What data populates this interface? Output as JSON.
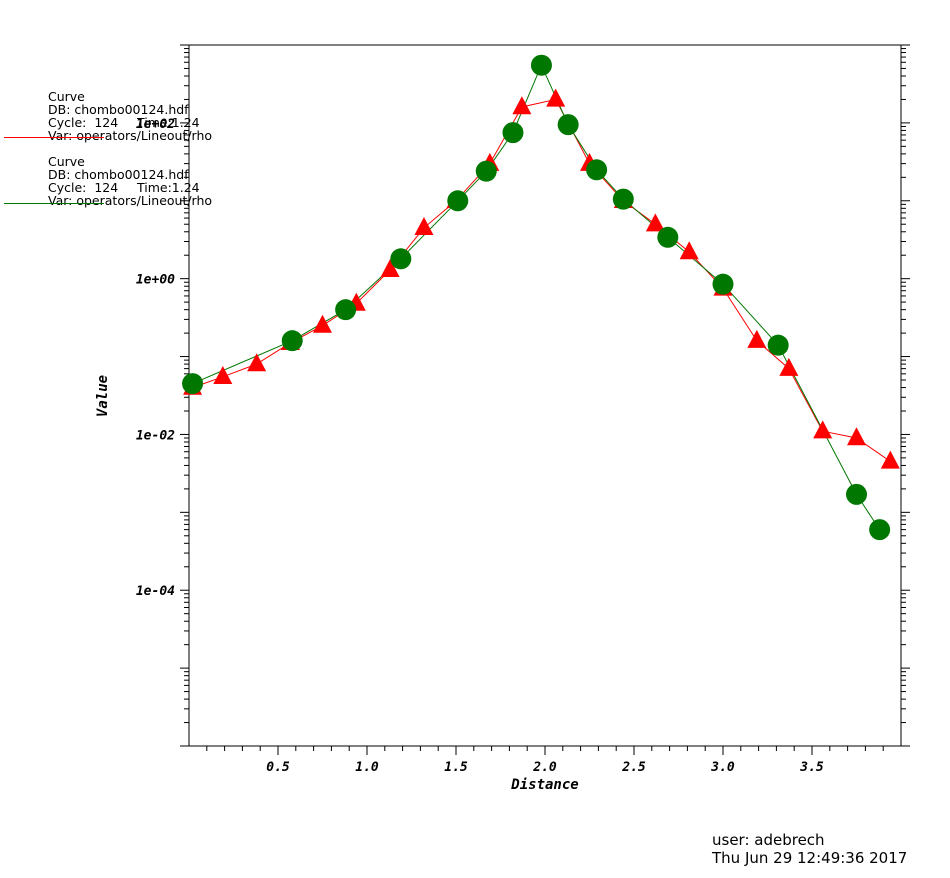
{
  "chart_data": {
    "type": "line",
    "xlabel": "Distance",
    "ylabel": "Value",
    "xlim": [
      0.0,
      4.0
    ],
    "ylim": [
      1e-06,
      1000
    ],
    "yscale": "log",
    "grid": false,
    "legend_placement": "top-left",
    "x_ticks": [
      0.5,
      1.0,
      1.5,
      2.0,
      2.5,
      3.0,
      3.5
    ],
    "x_tick_labels": [
      "0.5",
      "1.0",
      "1.5",
      "2.0",
      "2.5",
      "3.0",
      "3.5"
    ],
    "y_ticks": [
      0.0001,
      0.01,
      1,
      100
    ],
    "y_tick_labels": [
      "1e-04",
      "1e-02",
      "1e+00",
      "1e+02"
    ],
    "series": [
      {
        "name": "operators/Lineout/rho",
        "color": "#ff0000",
        "marker": "triangle",
        "x": [
          0.02,
          0.19,
          0.38,
          0.57,
          0.75,
          0.94,
          1.13,
          1.32,
          1.5,
          1.69,
          1.87,
          2.06,
          2.25,
          2.44,
          2.62,
          2.81,
          3.0,
          3.19,
          3.37,
          3.56,
          3.75,
          3.94
        ],
        "values": [
          0.04,
          0.055,
          0.08,
          0.15,
          0.25,
          0.48,
          1.3,
          4.5,
          10,
          30,
          160,
          200,
          30,
          10,
          5,
          2.2,
          0.75,
          0.16,
          0.07,
          0.011,
          0.009,
          0.0045
        ]
      },
      {
        "name": "operators/Lineout/rho",
        "color": "#007700",
        "marker": "circle",
        "x": [
          0.02,
          0.58,
          0.88,
          1.19,
          1.51,
          1.67,
          1.82,
          1.98,
          2.13,
          2.29,
          2.44,
          2.69,
          3.0,
          3.31,
          3.75,
          3.88
        ],
        "values": [
          0.045,
          0.16,
          0.4,
          1.8,
          10,
          24,
          75,
          550,
          95,
          25,
          10.5,
          3.4,
          0.85,
          0.14,
          0.0017,
          0.0006
        ]
      }
    ]
  },
  "legend": [
    {
      "kind": "Curve",
      "db": "DB: chombo00124.hdf",
      "cycle": "Cycle:  124",
      "time": "Time:1.24",
      "var": "Var: operators/Lineout/rho"
    },
    {
      "kind": "Curve",
      "db": "DB: chombo00124.hdf",
      "cycle": "Cycle:  124",
      "time": "Time:1.24",
      "var": "Var: operators/Lineout/rho"
    }
  ],
  "footer": {
    "user": "user: adebrech",
    "date": "Thu Jun 29 12:49:36 2017"
  }
}
